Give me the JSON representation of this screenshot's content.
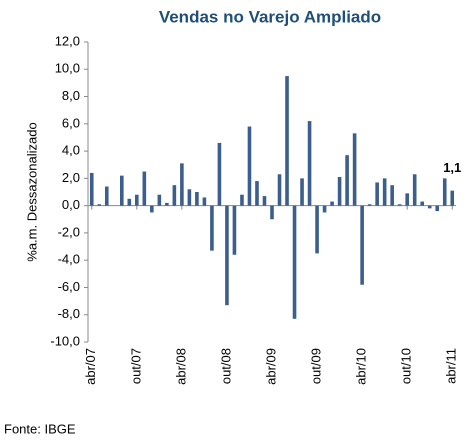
{
  "chart_data": {
    "type": "bar",
    "title": "Vendas no Varejo Ampliado",
    "y_label": "%a.m. Dessazonalizado",
    "source": "Fonte: IBGE",
    "color": "#3b5e8c",
    "categories": [
      "abr/07",
      null,
      null,
      null,
      null,
      null,
      "out/07",
      null,
      null,
      null,
      null,
      null,
      "abr/08",
      null,
      null,
      null,
      null,
      null,
      "out/08",
      null,
      null,
      null,
      null,
      null,
      "abr/09",
      null,
      null,
      null,
      null,
      null,
      "out/09",
      null,
      null,
      null,
      null,
      null,
      "abr/10",
      null,
      null,
      null,
      null,
      null,
      "out/10",
      null,
      null,
      null,
      null,
      null,
      "abr/11"
    ],
    "values": [
      2.4,
      0.1,
      1.4,
      0.0,
      2.2,
      0.5,
      0.8,
      2.5,
      -0.5,
      0.8,
      0.2,
      1.5,
      3.1,
      1.2,
      1.0,
      0.6,
      -3.3,
      4.6,
      -7.3,
      -3.6,
      0.8,
      5.8,
      1.8,
      0.7,
      -1.0,
      2.3,
      9.5,
      -8.3,
      2.0,
      6.2,
      -3.5,
      -0.5,
      0.3,
      2.1,
      3.7,
      5.3,
      -5.8,
      0.1,
      1.7,
      2.0,
      1.5,
      0.1,
      0.9,
      2.3,
      0.3,
      -0.2,
      -0.4,
      2.0,
      1.1
    ],
    "value_labels": [
      null,
      null,
      null,
      null,
      null,
      null,
      null,
      null,
      null,
      null,
      null,
      null,
      null,
      null,
      null,
      null,
      null,
      null,
      null,
      null,
      null,
      null,
      null,
      null,
      null,
      null,
      null,
      null,
      null,
      null,
      null,
      null,
      null,
      null,
      null,
      null,
      null,
      null,
      null,
      null,
      null,
      null,
      null,
      null,
      null,
      null,
      null,
      null,
      "1,1"
    ],
    "ylim": [
      -10,
      12
    ],
    "yticks": [
      {
        "value": -10,
        "label": "-10,0"
      },
      {
        "value": -8,
        "label": "-8,0"
      },
      {
        "value": -6,
        "label": "-6,0"
      },
      {
        "value": -4,
        "label": "-4,0"
      },
      {
        "value": -2,
        "label": "-2,0"
      },
      {
        "value": 0,
        "label": "0,0"
      },
      {
        "value": 2,
        "label": "2,0"
      },
      {
        "value": 4,
        "label": "4,0"
      },
      {
        "value": 6,
        "label": "6,0"
      },
      {
        "value": 8,
        "label": "8,0"
      },
      {
        "value": 10,
        "label": "10,0"
      },
      {
        "value": 12,
        "label": "12,0"
      }
    ],
    "grid": false
  }
}
